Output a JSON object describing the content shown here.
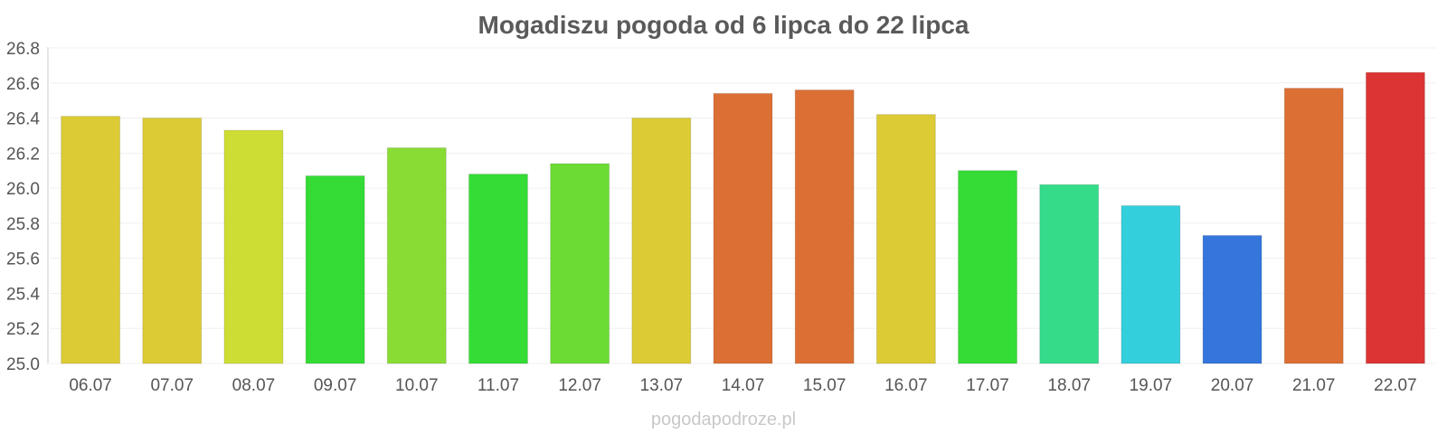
{
  "chart_data": {
    "type": "bar",
    "title": "Mogadiszu pogoda od 6 lipca do 22 lipca",
    "categories": [
      "06.07",
      "07.07",
      "08.07",
      "09.07",
      "10.07",
      "11.07",
      "12.07",
      "13.07",
      "14.07",
      "15.07",
      "16.07",
      "17.07",
      "18.07",
      "19.07",
      "20.07",
      "21.07",
      "22.07"
    ],
    "values": [
      26.41,
      26.4,
      26.33,
      26.07,
      26.23,
      26.08,
      26.14,
      26.4,
      26.54,
      26.56,
      26.42,
      26.1,
      26.02,
      25.9,
      25.73,
      26.57,
      26.66
    ],
    "colors": [
      "#dccb34",
      "#dccb34",
      "#cddd34",
      "#34dc35",
      "#89dc34",
      "#34dc35",
      "#6cdc34",
      "#dccb34",
      "#dc6f34",
      "#dc6f34",
      "#dccb34",
      "#34dc35",
      "#34dc8a",
      "#34cfdc",
      "#3476dc",
      "#dc6f34",
      "#dc3434"
    ],
    "yticks": [
      "25.0",
      "25.2",
      "25.4",
      "25.6",
      "25.8",
      "26.0",
      "26.2",
      "26.4",
      "26.6",
      "26.8"
    ],
    "ylim": [
      25.0,
      26.8
    ],
    "grid": true,
    "source": "pogodapodroze.pl"
  }
}
